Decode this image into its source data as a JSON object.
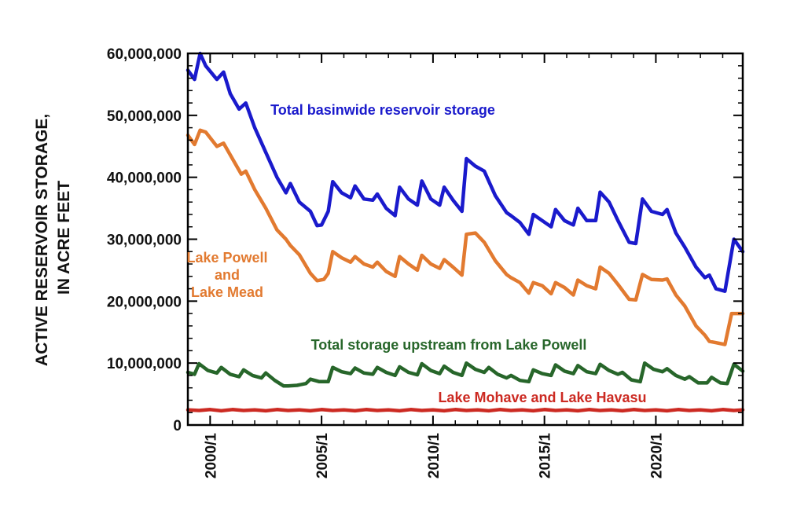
{
  "chart_data": {
    "type": "line",
    "ylabel_lines": [
      "ACTIVE RESERVOIR STORAGE,",
      "IN ACRE FEET"
    ],
    "xlim": [
      1999.0,
      2023.9
    ],
    "ylim": [
      0,
      60000000
    ],
    "y_ticks": [
      0,
      10000000,
      20000000,
      30000000,
      40000000,
      50000000,
      60000000
    ],
    "y_tick_labels": [
      "0",
      "10,000,000",
      "20,000,000",
      "30,000,000",
      "40,000,000",
      "50,000,000",
      "60,000,000"
    ],
    "x_ticks": [
      2000.0,
      2005.0,
      2010.0,
      2015.0,
      2020.0
    ],
    "x_tick_labels": [
      "2000/1",
      "2005/1",
      "2010/1",
      "2015/1",
      "2020/1"
    ],
    "grid": false,
    "series": [
      {
        "name": "Total basinwide reservoir storage",
        "label_lines": [
          "Total basinwide reservoir storage"
        ],
        "color": "#1a1acc",
        "points": [
          [
            1999.0,
            57300000
          ],
          [
            1999.3,
            55800000
          ],
          [
            1999.55,
            60000000
          ],
          [
            1999.8,
            58000000
          ],
          [
            2000.3,
            55800000
          ],
          [
            2000.6,
            57000000
          ],
          [
            2000.9,
            53500000
          ],
          [
            2001.3,
            51000000
          ],
          [
            2001.6,
            52000000
          ],
          [
            2002.0,
            48000000
          ],
          [
            2002.5,
            44000000
          ],
          [
            2003.0,
            40000000
          ],
          [
            2003.4,
            37500000
          ],
          [
            2003.6,
            39000000
          ],
          [
            2004.0,
            36000000
          ],
          [
            2004.5,
            34500000
          ],
          [
            2004.8,
            32200000
          ],
          [
            2005.0,
            32300000
          ],
          [
            2005.3,
            34500000
          ],
          [
            2005.5,
            39300000
          ],
          [
            2005.9,
            37500000
          ],
          [
            2006.3,
            36700000
          ],
          [
            2006.5,
            38600000
          ],
          [
            2006.9,
            36500000
          ],
          [
            2007.3,
            36300000
          ],
          [
            2007.5,
            37300000
          ],
          [
            2007.9,
            35000000
          ],
          [
            2008.3,
            33800000
          ],
          [
            2008.5,
            38400000
          ],
          [
            2008.9,
            36500000
          ],
          [
            2009.3,
            35500000
          ],
          [
            2009.5,
            39400000
          ],
          [
            2009.9,
            36500000
          ],
          [
            2010.3,
            35500000
          ],
          [
            2010.5,
            38400000
          ],
          [
            2010.9,
            36300000
          ],
          [
            2011.3,
            34500000
          ],
          [
            2011.5,
            43000000
          ],
          [
            2011.9,
            41800000
          ],
          [
            2012.3,
            41000000
          ],
          [
            2012.8,
            37000000
          ],
          [
            2013.3,
            34300000
          ],
          [
            2013.5,
            33800000
          ],
          [
            2013.9,
            32700000
          ],
          [
            2014.3,
            30800000
          ],
          [
            2014.5,
            34000000
          ],
          [
            2014.9,
            33000000
          ],
          [
            2015.3,
            32000000
          ],
          [
            2015.5,
            34800000
          ],
          [
            2015.9,
            33000000
          ],
          [
            2016.3,
            32300000
          ],
          [
            2016.5,
            35000000
          ],
          [
            2016.9,
            33000000
          ],
          [
            2017.3,
            33000000
          ],
          [
            2017.5,
            37600000
          ],
          [
            2017.9,
            36000000
          ],
          [
            2018.3,
            33000000
          ],
          [
            2018.8,
            29500000
          ],
          [
            2019.1,
            29300000
          ],
          [
            2019.4,
            36500000
          ],
          [
            2019.8,
            34500000
          ],
          [
            2020.3,
            34000000
          ],
          [
            2020.5,
            34800000
          ],
          [
            2020.9,
            31000000
          ],
          [
            2021.3,
            28700000
          ],
          [
            2021.8,
            25500000
          ],
          [
            2022.2,
            23800000
          ],
          [
            2022.4,
            24200000
          ],
          [
            2022.7,
            22000000
          ],
          [
            2023.1,
            21600000
          ],
          [
            2023.5,
            30000000
          ],
          [
            2023.9,
            28000000
          ]
        ]
      },
      {
        "name": "Lake Powell and Lake Mead",
        "label_lines": [
          "Lake Powell",
          "and",
          "Lake Mead"
        ],
        "color": "#e27a30",
        "points": [
          [
            1999.0,
            46800000
          ],
          [
            1999.3,
            45300000
          ],
          [
            1999.55,
            47600000
          ],
          [
            1999.8,
            47300000
          ],
          [
            2000.3,
            45000000
          ],
          [
            2000.6,
            45500000
          ],
          [
            2001.0,
            43000000
          ],
          [
            2001.4,
            40500000
          ],
          [
            2001.6,
            41000000
          ],
          [
            2002.0,
            38000000
          ],
          [
            2002.5,
            35000000
          ],
          [
            2003.0,
            31500000
          ],
          [
            2003.4,
            30000000
          ],
          [
            2003.6,
            29000000
          ],
          [
            2004.0,
            27500000
          ],
          [
            2004.5,
            24500000
          ],
          [
            2004.8,
            23300000
          ],
          [
            2005.1,
            23500000
          ],
          [
            2005.3,
            24500000
          ],
          [
            2005.5,
            28000000
          ],
          [
            2005.9,
            27000000
          ],
          [
            2006.3,
            26300000
          ],
          [
            2006.5,
            27200000
          ],
          [
            2006.9,
            26000000
          ],
          [
            2007.3,
            25500000
          ],
          [
            2007.5,
            26300000
          ],
          [
            2007.9,
            24800000
          ],
          [
            2008.3,
            24000000
          ],
          [
            2008.5,
            27200000
          ],
          [
            2008.9,
            26000000
          ],
          [
            2009.3,
            25000000
          ],
          [
            2009.5,
            27400000
          ],
          [
            2009.9,
            26000000
          ],
          [
            2010.3,
            25300000
          ],
          [
            2010.5,
            26700000
          ],
          [
            2010.9,
            25500000
          ],
          [
            2011.3,
            24200000
          ],
          [
            2011.5,
            30800000
          ],
          [
            2011.9,
            31000000
          ],
          [
            2012.3,
            29500000
          ],
          [
            2012.8,
            26500000
          ],
          [
            2013.3,
            24300000
          ],
          [
            2013.5,
            23800000
          ],
          [
            2013.9,
            23000000
          ],
          [
            2014.3,
            21300000
          ],
          [
            2014.5,
            23000000
          ],
          [
            2014.9,
            22500000
          ],
          [
            2015.3,
            21200000
          ],
          [
            2015.5,
            23000000
          ],
          [
            2015.9,
            22200000
          ],
          [
            2016.3,
            21000000
          ],
          [
            2016.5,
            23400000
          ],
          [
            2016.9,
            22500000
          ],
          [
            2017.3,
            22000000
          ],
          [
            2017.5,
            25500000
          ],
          [
            2017.9,
            24500000
          ],
          [
            2018.3,
            22700000
          ],
          [
            2018.8,
            20300000
          ],
          [
            2019.1,
            20200000
          ],
          [
            2019.4,
            24300000
          ],
          [
            2019.8,
            23500000
          ],
          [
            2020.3,
            23400000
          ],
          [
            2020.5,
            23600000
          ],
          [
            2020.9,
            21000000
          ],
          [
            2021.3,
            19200000
          ],
          [
            2021.8,
            16000000
          ],
          [
            2022.2,
            14500000
          ],
          [
            2022.4,
            13500000
          ],
          [
            2022.7,
            13300000
          ],
          [
            2023.1,
            13000000
          ],
          [
            2023.4,
            18000000
          ],
          [
            2023.9,
            18000000
          ]
        ]
      },
      {
        "name": "Total storage upstream from Lake Powell",
        "label_lines": [
          "Total storage upstream from Lake Powell"
        ],
        "color": "#27662a",
        "points": [
          [
            1999.0,
            8500000
          ],
          [
            1999.3,
            8200000
          ],
          [
            1999.5,
            9900000
          ],
          [
            1999.9,
            8800000
          ],
          [
            2000.3,
            8400000
          ],
          [
            2000.5,
            9300000
          ],
          [
            2000.9,
            8200000
          ],
          [
            2001.3,
            7800000
          ],
          [
            2001.5,
            8900000
          ],
          [
            2001.9,
            8000000
          ],
          [
            2002.3,
            7600000
          ],
          [
            2002.5,
            8400000
          ],
          [
            2002.9,
            7200000
          ],
          [
            2003.3,
            6300000
          ],
          [
            2003.5,
            6300000
          ],
          [
            2003.9,
            6400000
          ],
          [
            2004.3,
            6700000
          ],
          [
            2004.5,
            7400000
          ],
          [
            2004.9,
            7000000
          ],
          [
            2005.3,
            7000000
          ],
          [
            2005.5,
            9300000
          ],
          [
            2005.9,
            8600000
          ],
          [
            2006.3,
            8300000
          ],
          [
            2006.5,
            9200000
          ],
          [
            2006.9,
            8400000
          ],
          [
            2007.3,
            8200000
          ],
          [
            2007.5,
            9300000
          ],
          [
            2007.9,
            8500000
          ],
          [
            2008.3,
            8000000
          ],
          [
            2008.5,
            9400000
          ],
          [
            2008.9,
            8500000
          ],
          [
            2009.3,
            8100000
          ],
          [
            2009.5,
            9900000
          ],
          [
            2009.9,
            8800000
          ],
          [
            2010.3,
            8300000
          ],
          [
            2010.5,
            9500000
          ],
          [
            2010.9,
            8500000
          ],
          [
            2011.3,
            8000000
          ],
          [
            2011.5,
            10000000
          ],
          [
            2011.9,
            9000000
          ],
          [
            2012.3,
            8500000
          ],
          [
            2012.5,
            9300000
          ],
          [
            2012.9,
            8200000
          ],
          [
            2013.3,
            7600000
          ],
          [
            2013.5,
            8000000
          ],
          [
            2013.9,
            7200000
          ],
          [
            2014.3,
            7000000
          ],
          [
            2014.5,
            8900000
          ],
          [
            2014.9,
            8300000
          ],
          [
            2015.3,
            8000000
          ],
          [
            2015.5,
            9700000
          ],
          [
            2015.9,
            8700000
          ],
          [
            2016.3,
            8300000
          ],
          [
            2016.5,
            9600000
          ],
          [
            2016.9,
            8600000
          ],
          [
            2017.3,
            8300000
          ],
          [
            2017.5,
            9800000
          ],
          [
            2017.9,
            8800000
          ],
          [
            2018.3,
            8200000
          ],
          [
            2018.5,
            8500000
          ],
          [
            2018.9,
            7300000
          ],
          [
            2019.3,
            7000000
          ],
          [
            2019.5,
            10000000
          ],
          [
            2019.9,
            9000000
          ],
          [
            2020.3,
            8600000
          ],
          [
            2020.5,
            9100000
          ],
          [
            2020.9,
            8000000
          ],
          [
            2021.3,
            7400000
          ],
          [
            2021.5,
            7800000
          ],
          [
            2021.9,
            6800000
          ],
          [
            2022.3,
            6800000
          ],
          [
            2022.5,
            7700000
          ],
          [
            2022.9,
            6800000
          ],
          [
            2023.2,
            6700000
          ],
          [
            2023.5,
            9800000
          ],
          [
            2023.9,
            8700000
          ]
        ]
      },
      {
        "name": "Lake Mohave and Lake Havasu",
        "label_lines": [
          "Lake Mohave and Lake Havasu"
        ],
        "color": "#cc2a22",
        "points": [
          [
            1999.0,
            2450000
          ],
          [
            1999.5,
            2350000
          ],
          [
            2000.0,
            2500000
          ],
          [
            2000.5,
            2300000
          ],
          [
            2001.0,
            2500000
          ],
          [
            2001.5,
            2350000
          ],
          [
            2002.0,
            2450000
          ],
          [
            2002.5,
            2300000
          ],
          [
            2003.0,
            2500000
          ],
          [
            2003.5,
            2350000
          ],
          [
            2004.0,
            2450000
          ],
          [
            2004.5,
            2300000
          ],
          [
            2005.0,
            2500000
          ],
          [
            2005.5,
            2350000
          ],
          [
            2006.0,
            2450000
          ],
          [
            2006.5,
            2300000
          ],
          [
            2007.0,
            2500000
          ],
          [
            2007.5,
            2350000
          ],
          [
            2008.0,
            2450000
          ],
          [
            2008.5,
            2300000
          ],
          [
            2009.0,
            2500000
          ],
          [
            2009.5,
            2350000
          ],
          [
            2010.0,
            2450000
          ],
          [
            2010.5,
            2300000
          ],
          [
            2011.0,
            2500000
          ],
          [
            2011.5,
            2350000
          ],
          [
            2012.0,
            2450000
          ],
          [
            2012.5,
            2300000
          ],
          [
            2013.0,
            2500000
          ],
          [
            2013.5,
            2350000
          ],
          [
            2014.0,
            2450000
          ],
          [
            2014.5,
            2300000
          ],
          [
            2015.0,
            2500000
          ],
          [
            2015.5,
            2350000
          ],
          [
            2016.0,
            2450000
          ],
          [
            2016.5,
            2300000
          ],
          [
            2017.0,
            2500000
          ],
          [
            2017.5,
            2350000
          ],
          [
            2018.0,
            2450000
          ],
          [
            2018.5,
            2300000
          ],
          [
            2019.0,
            2500000
          ],
          [
            2019.5,
            2350000
          ],
          [
            2020.0,
            2450000
          ],
          [
            2020.5,
            2300000
          ],
          [
            2021.0,
            2500000
          ],
          [
            2021.5,
            2350000
          ],
          [
            2022.0,
            2450000
          ],
          [
            2022.5,
            2300000
          ],
          [
            2023.0,
            2500000
          ],
          [
            2023.5,
            2350000
          ],
          [
            2023.9,
            2450000
          ]
        ]
      }
    ]
  }
}
